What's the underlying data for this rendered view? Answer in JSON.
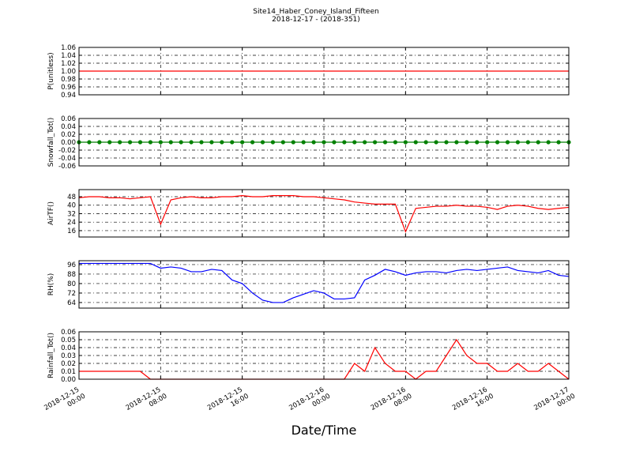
{
  "chart_data": {
    "type": "line",
    "title": "Site14_Haber_Coney_Island_Fifteen",
    "subtitle": "2018-12-17 - (2018-351)",
    "xlabel": "Date/Time",
    "grid": true,
    "x": [
      "2018-12-15 00:00",
      "2018-12-15 01:00",
      "2018-12-15 02:00",
      "2018-12-15 03:00",
      "2018-12-15 04:00",
      "2018-12-15 05:00",
      "2018-12-15 06:00",
      "2018-12-15 07:00",
      "2018-12-15 08:00",
      "2018-12-15 09:00",
      "2018-12-15 10:00",
      "2018-12-15 11:00",
      "2018-12-15 12:00",
      "2018-12-15 13:00",
      "2018-12-15 14:00",
      "2018-12-15 15:00",
      "2018-12-15 16:00",
      "2018-12-15 17:00",
      "2018-12-15 18:00",
      "2018-12-15 19:00",
      "2018-12-15 20:00",
      "2018-12-15 21:00",
      "2018-12-15 22:00",
      "2018-12-15 23:00",
      "2018-12-16 00:00",
      "2018-12-16 01:00",
      "2018-12-16 02:00",
      "2018-12-16 03:00",
      "2018-12-16 04:00",
      "2018-12-16 05:00",
      "2018-12-16 06:00",
      "2018-12-16 07:00",
      "2018-12-16 08:00",
      "2018-12-16 09:00",
      "2018-12-16 10:00",
      "2018-12-16 11:00",
      "2018-12-16 12:00",
      "2018-12-16 13:00",
      "2018-12-16 14:00",
      "2018-12-16 15:00",
      "2018-12-16 16:00",
      "2018-12-16 17:00",
      "2018-12-16 18:00",
      "2018-12-16 19:00",
      "2018-12-16 20:00",
      "2018-12-16 21:00",
      "2018-12-16 22:00",
      "2018-12-16 23:00",
      "2018-12-17 00:00"
    ],
    "xlim": [
      "2018-12-15 00:00",
      "2018-12-17 00:00"
    ],
    "xticks": [
      "2018-12-15 00:00",
      "2018-12-15 08:00",
      "2018-12-15 16:00",
      "2018-12-16 00:00",
      "2018-12-16 08:00",
      "2018-12-16 16:00",
      "2018-12-17 00:00"
    ],
    "panels": [
      {
        "ylabel": "P(unitless)",
        "ylim": [
          0.94,
          1.06
        ],
        "yticks": [
          0.94,
          0.96,
          0.98,
          {
            "value": 1,
            "label": "1.00"
          },
          1.02,
          1.04,
          1.06
        ],
        "series": [
          {
            "color": "#ff0000",
            "marker": false,
            "values": [
              1,
              1,
              1,
              1,
              1,
              1,
              1,
              1,
              1,
              1,
              1,
              1,
              1,
              1,
              1,
              1,
              1,
              1,
              1,
              1,
              1,
              1,
              1,
              1,
              1,
              1,
              1,
              1,
              1,
              1,
              1,
              1,
              1,
              1,
              1,
              1,
              1,
              1,
              1,
              1,
              1,
              1,
              1,
              1,
              1,
              1,
              1,
              1,
              1
            ]
          }
        ]
      },
      {
        "ylabel": "Snowfall_Tot()",
        "ylim": [
          -0.06,
          0.06
        ],
        "yticks": [
          -0.06,
          -0.04,
          -0.02,
          {
            "value": 0,
            "label": "0.00"
          },
          0.02,
          0.04,
          0.06
        ],
        "series": [
          {
            "color": "#008000",
            "marker": true,
            "values": [
              0,
              0,
              0,
              0,
              0,
              0,
              0,
              0,
              0,
              0,
              0,
              0,
              0,
              0,
              0,
              0,
              0,
              0,
              0,
              0,
              0,
              0,
              0,
              0,
              0,
              0,
              0,
              0,
              0,
              0,
              0,
              0,
              0,
              0,
              0,
              0,
              0,
              0,
              0,
              0,
              0,
              0,
              0,
              0,
              0,
              0,
              0,
              0,
              0
            ]
          }
        ]
      },
      {
        "ylabel": "AirTF()",
        "ylim": [
          10,
          54.7
        ],
        "yticks": [
          16,
          24,
          32,
          40,
          48
        ],
        "series": [
          {
            "color": "#ff0000",
            "marker": false,
            "values": [
              47,
              48,
              48,
              47,
              47,
              46,
              47,
              48,
              22,
              45,
              47,
              48,
              47,
              47,
              48,
              48,
              49,
              48,
              48,
              49,
              49,
              49,
              48,
              48,
              47,
              46,
              45,
              43,
              42,
              41,
              41,
              41,
              15,
              37,
              38,
              39,
              39,
              40,
              39,
              39,
              38,
              36,
              39,
              40,
              39,
              37,
              36,
              37,
              38
            ]
          }
        ]
      },
      {
        "ylabel": "RH(%)",
        "ylim": [
          59.3,
          99.3
        ],
        "yticks": [
          64,
          72,
          80,
          88,
          96
        ],
        "series": [
          {
            "color": "#0000ff",
            "marker": false,
            "values": [
              97,
              97,
              97,
              97,
              97,
              97,
              97,
              97,
              93,
              94,
              93,
              90,
              90,
              92,
              91,
              83,
              80,
              72,
              66,
              64,
              64,
              68,
              71,
              74,
              72,
              67,
              67,
              68,
              83,
              87,
              92,
              90,
              87,
              89,
              90,
              90,
              89,
              91,
              92,
              91,
              92,
              93,
              94,
              91,
              90,
              89,
              91,
              87,
              86
            ]
          }
        ]
      },
      {
        "ylabel": "Rainfall_Tot()",
        "ylim": [
          0,
          0.06
        ],
        "yticks": [
          {
            "value": 0,
            "label": "0.00"
          },
          0.01,
          0.02,
          0.03,
          0.04,
          0.05,
          0.06
        ],
        "series": [
          {
            "color": "#ff0000",
            "marker": false,
            "values": [
              0.01,
              0.01,
              0.01,
              0.01,
              0.01,
              0.01,
              0.01,
              0,
              0,
              0,
              0,
              0,
              0,
              0,
              0,
              0,
              0,
              0,
              0,
              0,
              0,
              0,
              0,
              0,
              0,
              0,
              0,
              0.02,
              0.01,
              0.04,
              0.02,
              0.01,
              0.01,
              0,
              0.01,
              0.01,
              0.03,
              0.05,
              0.03,
              0.02,
              0.02,
              0.01,
              0.01,
              0.02,
              0.01,
              0.01,
              0.02,
              0.01,
              0
            ]
          }
        ]
      }
    ]
  }
}
